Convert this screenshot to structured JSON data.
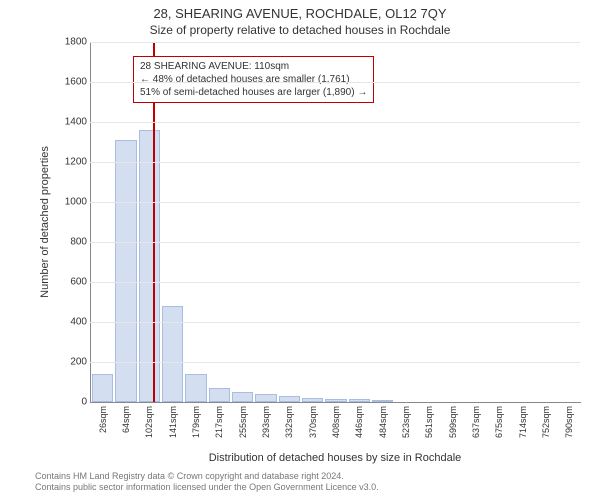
{
  "title": "28, SHEARING AVENUE, ROCHDALE, OL12 7QY",
  "subtitle": "Size of property relative to detached houses in Rochdale",
  "chart": {
    "type": "histogram",
    "ylabel": "Number of detached properties",
    "xlabel": "Distribution of detached houses by size in Rochdale",
    "ylim": [
      0,
      1800
    ],
    "ytick_step": 200,
    "bar_fill": "#d3def0",
    "bar_stroke": "#a8bde0",
    "grid_color": "#e6e6e6",
    "axis_color": "#888888",
    "background": "#ffffff",
    "x_categories": [
      "26sqm",
      "64sqm",
      "102sqm",
      "141sqm",
      "179sqm",
      "217sqm",
      "255sqm",
      "293sqm",
      "332sqm",
      "370sqm",
      "408sqm",
      "446sqm",
      "484sqm",
      "523sqm",
      "561sqm",
      "599sqm",
      "637sqm",
      "675sqm",
      "714sqm",
      "752sqm",
      "790sqm"
    ],
    "values": [
      140,
      1310,
      1360,
      480,
      140,
      70,
      50,
      40,
      30,
      20,
      15,
      15,
      10,
      0,
      0,
      0,
      0,
      0,
      0,
      0,
      0
    ],
    "marker": {
      "value_sqm": 110,
      "color": "#c00000",
      "line_width": 2
    },
    "annotation": {
      "lines": [
        "28 SHEARING AVENUE: 110sqm",
        "← 48% of detached houses are smaller (1,761)",
        "51% of semi-detached houses are larger (1,890) →"
      ],
      "border_color": "#c00000",
      "text_color": "#333333",
      "fontsize": 10
    }
  },
  "footer": {
    "line1": "Contains HM Land Registry data © Crown copyright and database right 2024.",
    "line2": "Contains public sector information licensed under the Open Government Licence v3.0."
  }
}
